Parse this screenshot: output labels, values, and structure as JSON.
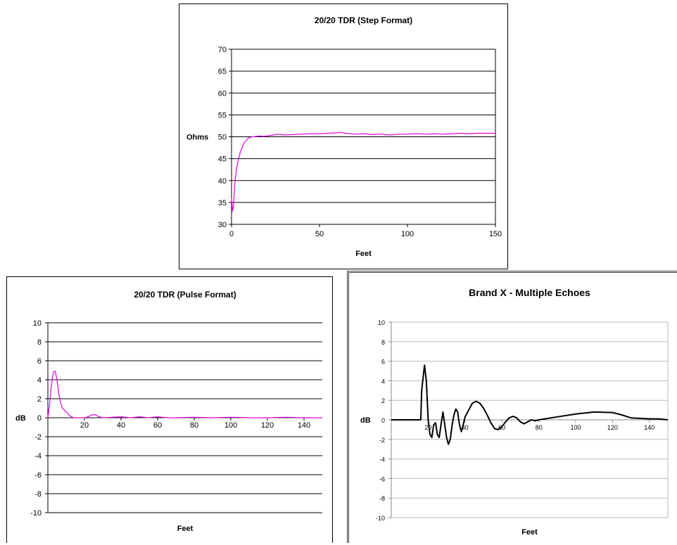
{
  "chart_data": [
    {
      "type": "line",
      "title": "20/20 TDR (Step Format)",
      "xlabel": "Feet",
      "ylabel": "Ohms",
      "xlim": [
        0,
        150
      ],
      "ylim": [
        30,
        70
      ],
      "xticks": [
        0,
        50,
        100,
        150
      ],
      "yticks": [
        30,
        35,
        40,
        45,
        50,
        55,
        60,
        65,
        70
      ],
      "grid": true,
      "line_color": "#e000e0",
      "series": [
        {
          "x": [
            0,
            0.5,
            1,
            1.5,
            2,
            3,
            4,
            5,
            6,
            7,
            8,
            9,
            10,
            12,
            14,
            16,
            18,
            20,
            22,
            24,
            26,
            28,
            30,
            35,
            40,
            45,
            50,
            55,
            60,
            62,
            65,
            70,
            75,
            80,
            85,
            90,
            95,
            100,
            105,
            110,
            115,
            120,
            125,
            130,
            135,
            140,
            145,
            150
          ],
          "y": [
            36,
            33,
            34,
            37,
            40,
            43,
            45,
            46.5,
            47.5,
            48.5,
            49,
            49.5,
            49.8,
            50,
            50.1,
            50.2,
            50.1,
            50.2,
            50.3,
            50.4,
            50.6,
            50.5,
            50.4,
            50.5,
            50.6,
            50.7,
            50.7,
            50.8,
            50.9,
            51,
            50.8,
            50.6,
            50.7,
            50.5,
            50.6,
            50.4,
            50.6,
            50.6,
            50.7,
            50.6,
            50.7,
            50.6,
            50.7,
            50.8,
            50.7,
            50.8,
            50.8,
            50.8
          ]
        }
      ]
    },
    {
      "type": "line",
      "title": "20/20 TDR  (Pulse Format)",
      "xlabel": "Feet",
      "ylabel": "dB",
      "xlim": [
        0,
        150
      ],
      "ylim": [
        -10,
        10
      ],
      "xticks": [
        20,
        40,
        60,
        80,
        100,
        120,
        140
      ],
      "yticks": [
        -10,
        -8,
        -6,
        -4,
        -2,
        0,
        2,
        4,
        6,
        8,
        10
      ],
      "grid": true,
      "line_color": "#e000e0",
      "series": [
        {
          "x": [
            0,
            1,
            2,
            3,
            4,
            5,
            6,
            7,
            8,
            10,
            12,
            14,
            16,
            18,
            20,
            22,
            24,
            26,
            28,
            30,
            35,
            40,
            45,
            50,
            55,
            60,
            65,
            70,
            80,
            90,
            100,
            110,
            120,
            130,
            140,
            150
          ],
          "y": [
            0,
            1.5,
            3.5,
            4.8,
            4.9,
            4,
            2.5,
            1.5,
            1,
            0.6,
            0.2,
            0,
            0,
            0,
            0,
            0.1,
            0.3,
            0.3,
            0.1,
            0,
            0.05,
            0.1,
            0,
            0.1,
            0,
            0.1,
            0,
            0,
            0.05,
            0,
            0.05,
            0,
            0,
            0.05,
            0,
            0
          ]
        }
      ]
    },
    {
      "type": "line",
      "title": "Brand X - Multiple Echoes",
      "xlabel": "Feet",
      "ylabel": "dB",
      "xlim": [
        0,
        150
      ],
      "ylim": [
        -10,
        10
      ],
      "xticks": [
        20,
        40,
        60,
        80,
        100,
        120,
        140
      ],
      "yticks": [
        -10,
        -8,
        -6,
        -4,
        -2,
        0,
        2,
        4,
        6,
        8,
        10
      ],
      "grid": true,
      "line_color": "#000000",
      "series": [
        {
          "x": [
            0,
            16,
            16.5,
            18,
            19,
            20,
            21,
            22,
            23,
            24,
            25,
            26,
            27,
            28,
            29,
            30,
            31,
            32,
            33,
            34,
            35,
            36,
            37,
            38,
            39,
            40,
            42,
            44,
            46,
            48,
            50,
            52,
            54,
            56,
            58,
            60,
            62,
            64,
            66,
            68,
            70,
            72,
            74,
            76,
            78,
            80,
            90,
            100,
            110,
            120,
            125,
            130,
            140,
            145,
            150
          ],
          "y": [
            0,
            0,
            3,
            5.6,
            4,
            0,
            -1.5,
            -1.8,
            -0.5,
            -0.3,
            -1.5,
            -1.8,
            -0.5,
            0.8,
            -0.5,
            -1.8,
            -2.5,
            -2,
            -0.5,
            0.5,
            1.1,
            0.8,
            -0.5,
            -1.2,
            -0.5,
            0.3,
            1,
            1.7,
            1.9,
            1.7,
            1.2,
            0.5,
            -0.3,
            -0.9,
            -1,
            -0.7,
            -0.2,
            0.2,
            0.35,
            0.2,
            -0.2,
            -0.4,
            -0.2,
            0,
            -0.1,
            0,
            0.3,
            0.6,
            0.8,
            0.75,
            0.5,
            0.2,
            0.1,
            0.1,
            0
          ]
        }
      ]
    }
  ]
}
